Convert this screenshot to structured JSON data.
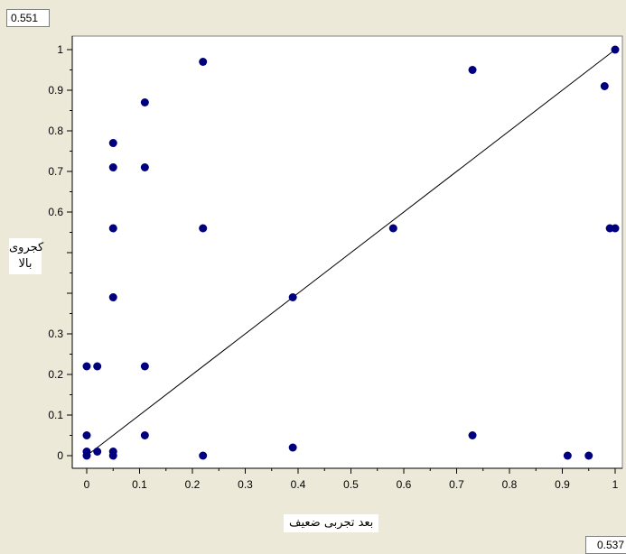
{
  "readouts": {
    "top": "0.551",
    "bottom": "0.537"
  },
  "chart_data": {
    "type": "scatter",
    "xlabel": "بعد تجربی ضعیف",
    "ylabel_lines": [
      "کجروی",
      "بالا"
    ],
    "xlim": [
      0,
      1
    ],
    "ylim": [
      0,
      1
    ],
    "xticks": [
      "0",
      "0.1",
      "0.2",
      "0.3",
      "0.4",
      "0.5",
      "0.6",
      "0.7",
      "0.8",
      "0.9",
      "1"
    ],
    "yticks": [
      "0",
      "0.1",
      "0.2",
      "0.3",
      "0.4",
      "0.5",
      "0.6",
      "0.7",
      "0.8",
      "0.9",
      "1"
    ],
    "hidden_yticks": [
      "0.4",
      "0.5"
    ],
    "trend_line": {
      "x": [
        0,
        1
      ],
      "y": [
        0,
        1
      ]
    },
    "colors": {
      "points": "#00007f",
      "line": "#000000",
      "plot_bg": "#ffffff"
    },
    "points": [
      {
        "x": 0,
        "y": 0
      },
      {
        "x": 0,
        "y": 0.01
      },
      {
        "x": 0,
        "y": 0.05
      },
      {
        "x": 0,
        "y": 0.22
      },
      {
        "x": 0.02,
        "y": 0.01
      },
      {
        "x": 0.02,
        "y": 0.22
      },
      {
        "x": 0.05,
        "y": 0
      },
      {
        "x": 0.05,
        "y": 0.01
      },
      {
        "x": 0.05,
        "y": 0.39
      },
      {
        "x": 0.05,
        "y": 0.56
      },
      {
        "x": 0.05,
        "y": 0.71
      },
      {
        "x": 0.05,
        "y": 0.77
      },
      {
        "x": 0.11,
        "y": 0.05
      },
      {
        "x": 0.11,
        "y": 0.22
      },
      {
        "x": 0.11,
        "y": 0.71
      },
      {
        "x": 0.11,
        "y": 0.87
      },
      {
        "x": 0.22,
        "y": 0
      },
      {
        "x": 0.22,
        "y": 0.56
      },
      {
        "x": 0.22,
        "y": 0.97
      },
      {
        "x": 0.39,
        "y": 0.02
      },
      {
        "x": 0.39,
        "y": 0.39
      },
      {
        "x": 0.58,
        "y": 0.56
      },
      {
        "x": 0.73,
        "y": 0.05
      },
      {
        "x": 0.73,
        "y": 0.95
      },
      {
        "x": 0.91,
        "y": 0
      },
      {
        "x": 0.95,
        "y": 0
      },
      {
        "x": 0.98,
        "y": 0.91
      },
      {
        "x": 0.99,
        "y": 0.56
      },
      {
        "x": 1,
        "y": 0.56
      },
      {
        "x": 1,
        "y": 1
      }
    ]
  }
}
